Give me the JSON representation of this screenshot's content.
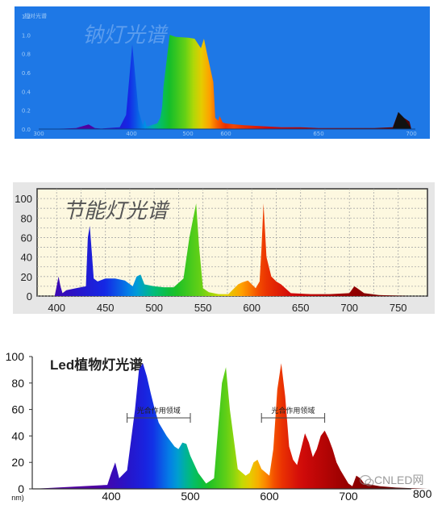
{
  "chart_data": [
    {
      "type": "area",
      "title": "钠灯光谱",
      "ylabel_text": "相对光谱",
      "xlim": [
        300,
        700
      ],
      "ylim": [
        0,
        1.2
      ],
      "x_ticks": [
        "300",
        "400",
        "500",
        "600",
        "650",
        "700"
      ],
      "y_ticks": [
        "0.0",
        "0.2",
        "0.4",
        "0.6",
        "0.8",
        "1.0",
        "1.2"
      ],
      "background": "#1E78E6",
      "x": [
        300,
        340,
        360,
        380,
        390,
        400,
        430,
        440,
        450,
        460,
        467,
        470,
        473,
        476,
        480,
        490,
        495,
        498,
        500,
        510,
        520,
        540,
        550,
        560,
        565,
        570,
        580,
        583,
        586,
        588,
        590,
        595,
        600,
        605,
        610,
        620,
        630,
        640,
        650,
        660,
        670,
        680,
        690,
        693,
        696,
        699,
        700
      ],
      "y": [
        0,
        0.005,
        0.01,
        0.05,
        0.01,
        0.005,
        0.02,
        0.15,
        0.9,
        0.2,
        0.04,
        0.1,
        0.03,
        0.03,
        0.04,
        0.06,
        0.12,
        0.24,
        0.45,
        1.0,
        0.98,
        0.97,
        0.96,
        0.86,
        0.96,
        0.8,
        0.5,
        0.12,
        0.1,
        0.09,
        0.14,
        0.07,
        0.06,
        0.05,
        0.04,
        0.03,
        0.02,
        0.02,
        0.01,
        0.01,
        0.01,
        0.01,
        0.02,
        0.18,
        0.12,
        0.08,
        0
      ]
    },
    {
      "type": "area",
      "title": "节能灯光谱",
      "xlim": [
        380,
        780
      ],
      "ylim": [
        0,
        110
      ],
      "x_ticks": [
        "400",
        "450",
        "500",
        "550",
        "600",
        "650",
        "700",
        "750"
      ],
      "y_ticks": [
        "0",
        "20",
        "40",
        "60",
        "80",
        "100"
      ],
      "background": "#FDF8E0",
      "grid": true,
      "x": [
        380,
        398,
        402,
        404,
        406,
        410,
        420,
        430,
        432,
        434,
        436,
        438,
        442,
        450,
        460,
        470,
        478,
        482,
        486,
        490,
        500,
        510,
        520,
        530,
        536,
        540,
        543,
        546,
        550,
        556,
        566,
        576,
        580,
        586,
        590,
        596,
        600,
        604,
        608,
        610,
        612,
        615,
        620,
        625,
        630,
        640,
        660,
        680,
        700,
        705,
        708,
        715,
        730,
        760,
        780
      ],
      "y": [
        0,
        0,
        20,
        10,
        3,
        6,
        8,
        10,
        60,
        72,
        45,
        18,
        15,
        18,
        18,
        16,
        10,
        20,
        22,
        12,
        10,
        9,
        9,
        18,
        60,
        80,
        95,
        50,
        8,
        4,
        2,
        2,
        6,
        12,
        14,
        16,
        12,
        8,
        15,
        50,
        95,
        40,
        20,
        15,
        12,
        3,
        2,
        2,
        3,
        10,
        8,
        3,
        1,
        0,
        0
      ]
    },
    {
      "type": "area",
      "title": "Led植物灯光谱",
      "xlim": [
        300,
        800
      ],
      "ylim": [
        0,
        100
      ],
      "x_ticks": [
        "nm)",
        "400",
        "500",
        "600",
        "700",
        "800"
      ],
      "y_ticks": [
        "0",
        "20",
        "40",
        "60",
        "80",
        "100"
      ],
      "annotations": [
        "光合作用领域",
        "光合作用领域"
      ],
      "x": [
        300,
        395,
        400,
        405,
        410,
        420,
        430,
        435,
        440,
        445,
        450,
        455,
        460,
        470,
        480,
        485,
        490,
        495,
        500,
        510,
        520,
        530,
        535,
        540,
        545,
        550,
        560,
        570,
        575,
        580,
        585,
        590,
        600,
        605,
        610,
        615,
        620,
        625,
        630,
        635,
        640,
        645,
        650,
        655,
        660,
        665,
        670,
        675,
        680,
        685,
        690,
        700,
        705,
        710,
        715,
        720,
        740,
        760,
        800
      ],
      "y": [
        0,
        3,
        12,
        20,
        8,
        14,
        60,
        90,
        95,
        85,
        72,
        60,
        50,
        40,
        32,
        30,
        35,
        34,
        25,
        12,
        4,
        8,
        45,
        80,
        92,
        60,
        15,
        10,
        12,
        20,
        22,
        15,
        10,
        30,
        75,
        95,
        70,
        32,
        22,
        18,
        30,
        42,
        35,
        24,
        30,
        40,
        44,
        38,
        30,
        20,
        14,
        4,
        2,
        10,
        8,
        4,
        2,
        1,
        0
      ]
    }
  ],
  "watermark": {
    "text": "CNLED网",
    "icon": "wechat-icon"
  },
  "corner_text": "800"
}
